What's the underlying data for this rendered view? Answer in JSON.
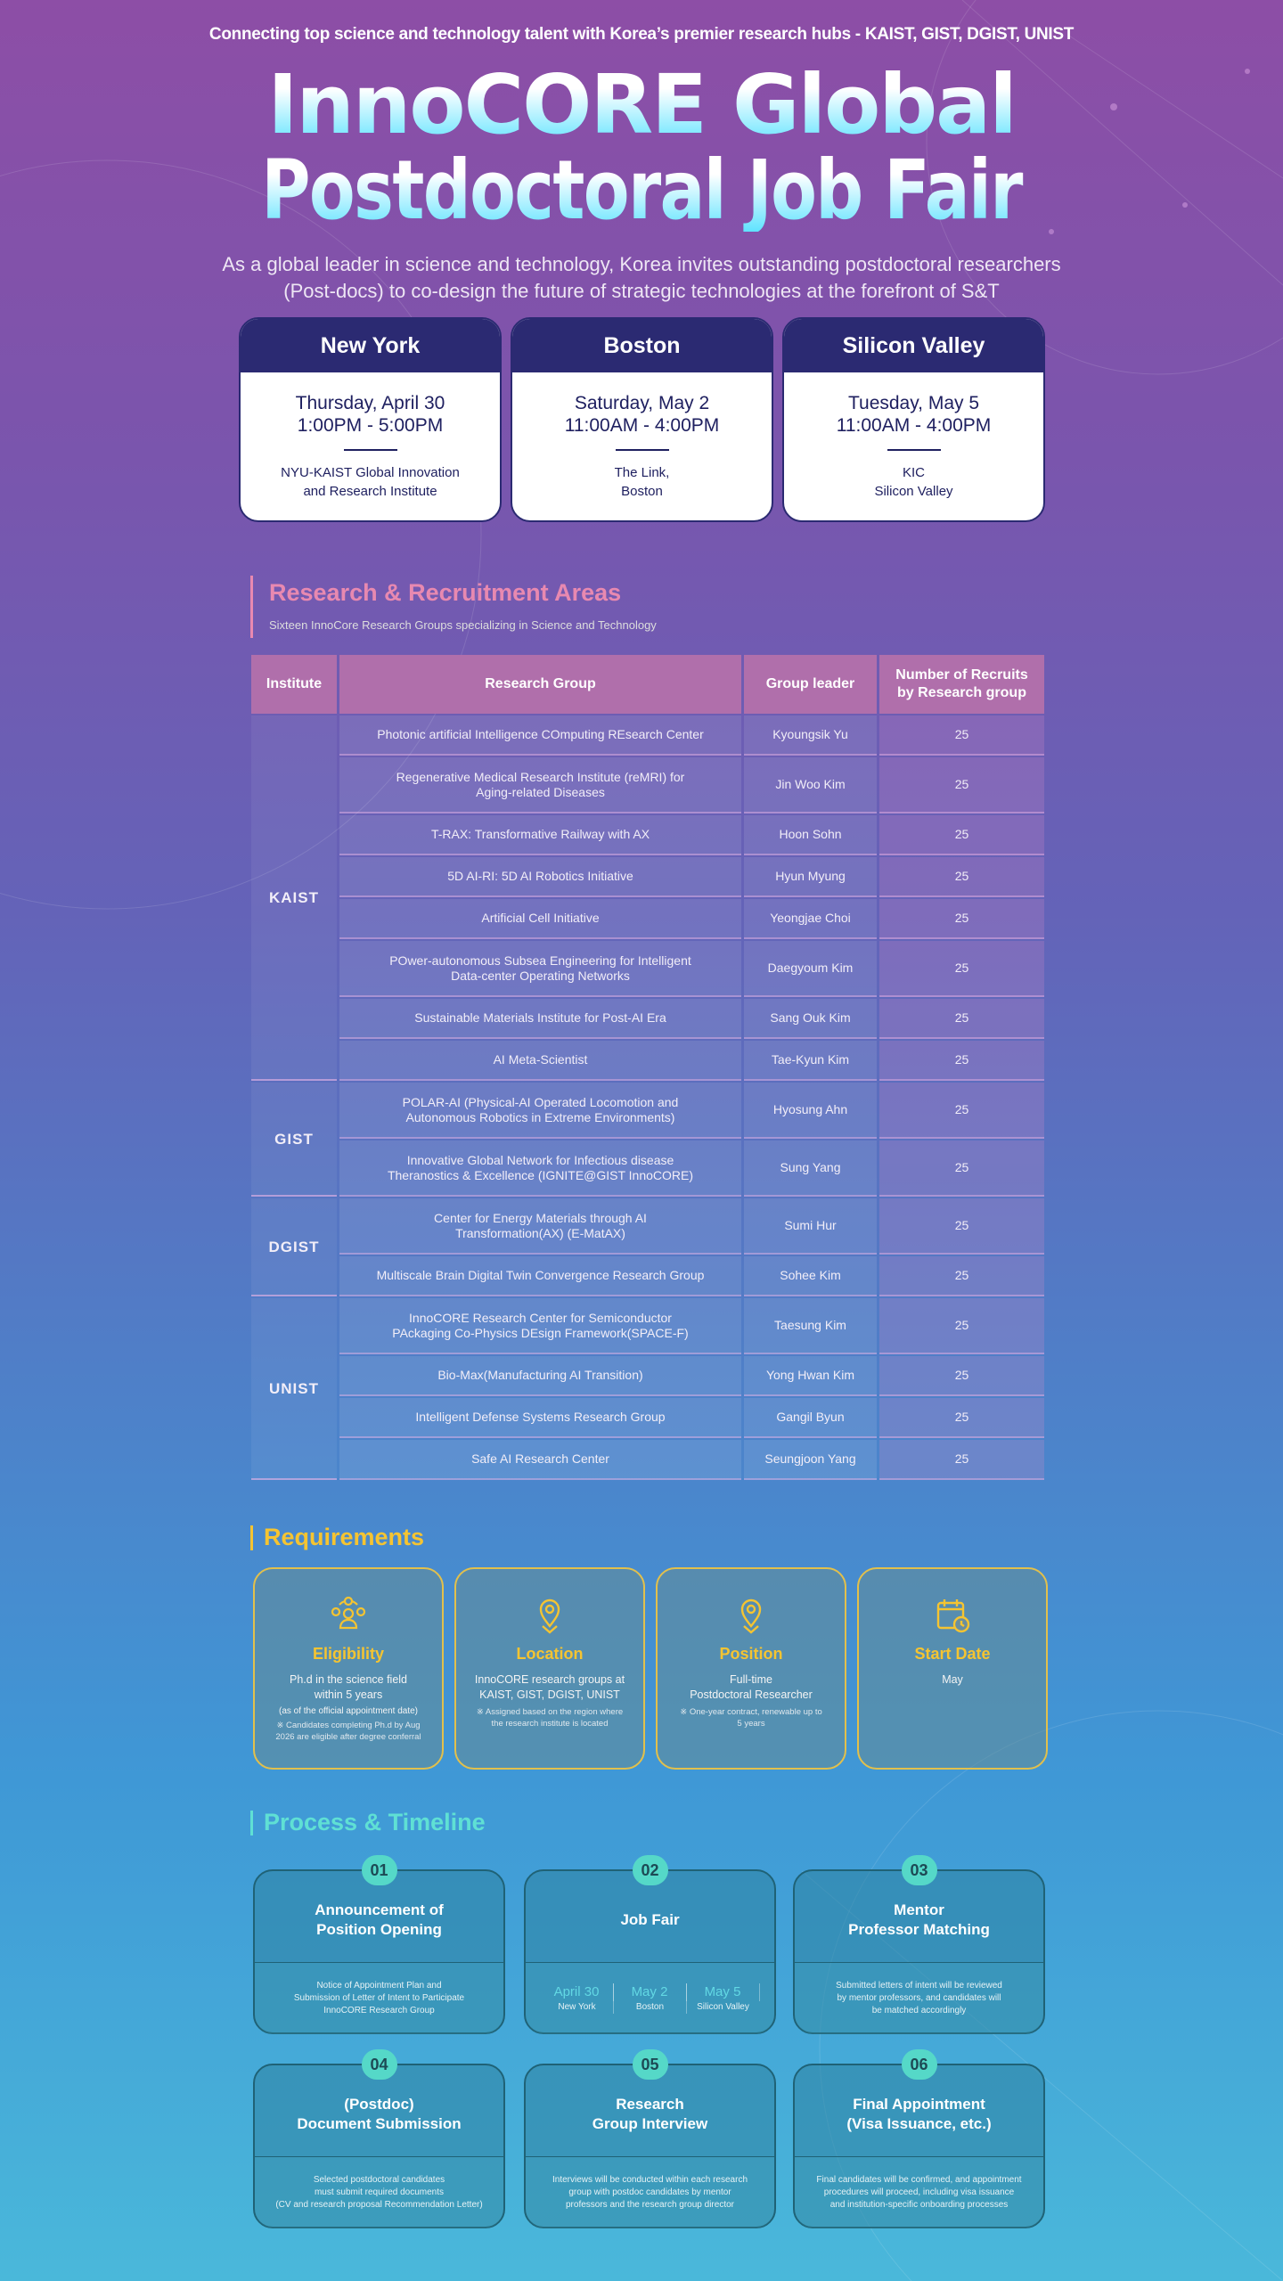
{
  "header": {
    "tagline": "Connecting top science and technology talent with Korea’s premier research hubs - KAIST, GIST, DGIST, UNIST",
    "title_line1": "InnoCORE Global",
    "title_line2": "Postdoctoral Job Fair",
    "intro_line1": "As a global leader in science and technology, Korea invites outstanding postdoctoral researchers",
    "intro_line2": "(Post-docs) to co-design the future of strategic technologies at the forefront of S&T"
  },
  "venues": [
    {
      "city": "New York",
      "date": "Thursday, April 30",
      "time": "1:00PM - 5:00PM",
      "place1": "NYU-KAIST Global Innovation",
      "place2": "and Research Institute"
    },
    {
      "city": "Boston",
      "date": "Saturday, May 2",
      "time": "11:00AM - 4:00PM",
      "place1": "The Link,",
      "place2": "Boston"
    },
    {
      "city": "Silicon Valley",
      "date": "Tuesday, May 5",
      "time": "11:00AM - 4:00PM",
      "place1": "KIC",
      "place2": "Silicon Valley"
    }
  ],
  "research": {
    "title": "Research & Recruitment Areas",
    "subtitle": "Sixteen InnoCore Research Groups specializing in Science and Technology",
    "columns": [
      "Institute",
      "Research Group",
      "Group leader",
      "Number of Recruits by Research group"
    ],
    "institutes": [
      "KAIST",
      "GIST",
      "DGIST",
      "UNIST"
    ],
    "rows": [
      {
        "group": "Photonic artificial Intelligence COmputing REsearch Center",
        "leader": "Kyoungsik Yu",
        "count": "25"
      },
      {
        "group": "Regenerative Medical Research Institute (reMRI) for Aging-related Diseases",
        "leader": "Jin Woo Kim",
        "count": "25"
      },
      {
        "group": "T-RAX: Transformative Railway with AX",
        "leader": "Hoon Sohn",
        "count": "25"
      },
      {
        "group": "5D AI-RI: 5D AI Robotics Initiative",
        "leader": "Hyun Myung",
        "count": "25"
      },
      {
        "group": "Artificial Cell Initiative",
        "leader": "Yeongjae Choi",
        "count": "25"
      },
      {
        "group": "POwer-autonomous Subsea Engineering for Intelligent Data-center Operating Networks",
        "leader": "Daegyoum Kim",
        "count": "25"
      },
      {
        "group": "Sustainable Materials Institute for Post-AI Era",
        "leader": "Sang Ouk Kim",
        "count": "25"
      },
      {
        "group": "AI Meta-Scientist",
        "leader": "Tae-Kyun Kim",
        "count": "25"
      },
      {
        "group": "POLAR-AI (Physical-AI Operated Locomotion and Autonomous Robotics in Extreme Environments)",
        "leader": "Hyosung Ahn",
        "count": "25"
      },
      {
        "group": "Innovative Global Network for Infectious disease Theranostics & Excellence (IGNITE@GIST InnoCORE)",
        "leader": "Sung Yang",
        "count": "25"
      },
      {
        "group": "Center for Energy Materials through AI Transformation(AX) (E-MatAX)",
        "leader": "Sumi Hur",
        "count": "25"
      },
      {
        "group": "Multiscale Brain Digital Twin Convergence Research Group",
        "leader": "Sohee Kim",
        "count": "25"
      },
      {
        "group": "InnoCORE Research Center for Semiconductor PAckaging Co-Physics DEsign Framework(SPACE-F)",
        "leader": "Taesung Kim",
        "count": "25"
      },
      {
        "group": "Bio-Max(Manufacturing AI Transition)",
        "leader": "Yong Hwan Kim",
        "count": "25"
      },
      {
        "group": "Intelligent Defense Systems Research Group",
        "leader": "Gangil Byun",
        "count": "25"
      },
      {
        "group": "Safe AI Research Center",
        "leader": "Seungjoon Yang",
        "count": "25"
      }
    ]
  },
  "requirements": {
    "title": "Requirements",
    "items": [
      {
        "icon": "people-check-icon",
        "title": "Eligibility",
        "body1": "Ph.d in the science field",
        "body2": "within 5 years",
        "note1": "(as of the official appointment date)",
        "note2": "※ Candidates completing Ph.d by Aug 2026 are eligible after degree conferral"
      },
      {
        "icon": "location-pin-icon",
        "title": "Location",
        "body1": "InnoCORE research groups at",
        "body2": "KAIST, GIST, DGIST, UNIST",
        "note2": "※ Assigned based on the region where the research institute is located"
      },
      {
        "icon": "location-pin-icon",
        "title": "Position",
        "body1": "Full-time",
        "body2": "Postdoctoral Researcher",
        "note2": "※ One-year contract, renewable up to 5 years"
      },
      {
        "icon": "calendar-clock-icon",
        "title": "Start Date",
        "body1": "May"
      }
    ]
  },
  "process": {
    "title": "Process & Timeline",
    "steps": [
      {
        "num": "01",
        "title1": "Announcement of",
        "title2": "Position Opening",
        "desc": [
          "Notice of Appointment Plan and",
          "Submission of Letter of Intent to Participate",
          "InnoCORE Research Group"
        ]
      },
      {
        "num": "02",
        "title1": "Job Fair",
        "title2": "",
        "dates": [
          {
            "date": "April 30",
            "city": "New York"
          },
          {
            "date": "May 2",
            "city": "Boston"
          },
          {
            "date": "May 5",
            "city": "Silicon Valley"
          }
        ]
      },
      {
        "num": "03",
        "title1": "Mentor",
        "title2": "Professor Matching",
        "desc": [
          "Submitted letters of intent will be reviewed",
          "by mentor professors, and candidates will",
          "be matched accordingly"
        ]
      },
      {
        "num": "04",
        "title1": "(Postdoc)",
        "title2": "Document Submission",
        "desc": [
          "Selected postdoctoral candidates",
          "must submit required documents",
          "(CV and research proposal Recommendation Letter)"
        ]
      },
      {
        "num": "05",
        "title1": "Research",
        "title2": "Group Interview",
        "desc": [
          "Interviews will be conducted within each research",
          "group with postdoc candidates by mentor",
          "professors and the research group director"
        ]
      },
      {
        "num": "06",
        "title1": "Final Appointment",
        "title2": "(Visa Issuance, etc.)",
        "desc": [
          "Final candidates will be confirmed, and appointment",
          "procedures will proceed, including visa issuance",
          "and institution-specific onboarding processes"
        ]
      }
    ]
  },
  "colors": {
    "venue_header": "#2b2a72",
    "research_accent": "#e889b0",
    "requirements_accent": "#f5c431",
    "process_accent": "#5fe0d4"
  }
}
